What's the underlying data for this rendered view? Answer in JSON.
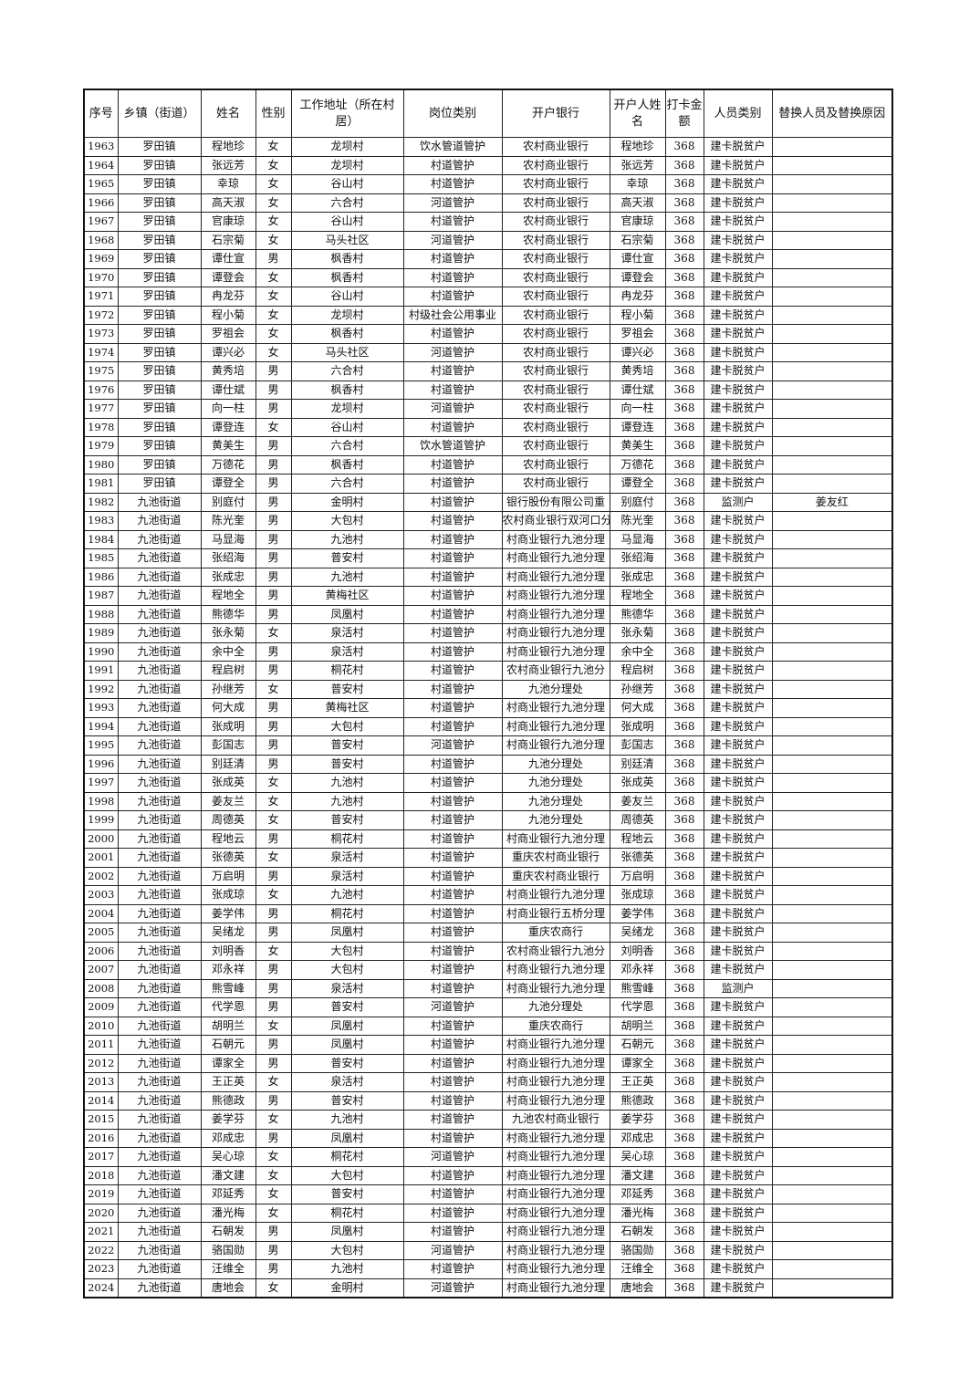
{
  "headers": [
    "序号",
    "乡镇（街道）",
    "姓名",
    "性别",
    "工作地址（所在村居）",
    "岗位类别",
    "开户银行",
    "开户人姓名",
    "打卡金额",
    "人员类别",
    "替换人员及替换原因"
  ],
  "rows": [
    [
      "1963",
      "罗田镇",
      "程地珍",
      "女",
      "龙坝村",
      "饮水管道管护",
      "农村商业银行",
      "程地珍",
      "368",
      "建卡脱贫户",
      ""
    ],
    [
      "1964",
      "罗田镇",
      "张远芳",
      "女",
      "龙坝村",
      "村道管护",
      "农村商业银行",
      "张远芳",
      "368",
      "建卡脱贫户",
      ""
    ],
    [
      "1965",
      "罗田镇",
      "幸琼",
      "女",
      "谷山村",
      "村道管护",
      "农村商业银行",
      "幸琼",
      "368",
      "建卡脱贫户",
      ""
    ],
    [
      "1966",
      "罗田镇",
      "高天淑",
      "女",
      "六合村",
      "河道管护",
      "农村商业银行",
      "高天淑",
      "368",
      "建卡脱贫户",
      ""
    ],
    [
      "1967",
      "罗田镇",
      "官康琼",
      "女",
      "谷山村",
      "村道管护",
      "农村商业银行",
      "官康琼",
      "368",
      "建卡脱贫户",
      ""
    ],
    [
      "1968",
      "罗田镇",
      "石宗菊",
      "女",
      "马头社区",
      "河道管护",
      "农村商业银行",
      "石宗菊",
      "368",
      "建卡脱贫户",
      ""
    ],
    [
      "1969",
      "罗田镇",
      "谭仕宣",
      "男",
      "枫香村",
      "村道管护",
      "农村商业银行",
      "谭仕宣",
      "368",
      "建卡脱贫户",
      ""
    ],
    [
      "1970",
      "罗田镇",
      "谭登会",
      "女",
      "枫香村",
      "村道管护",
      "农村商业银行",
      "谭登会",
      "368",
      "建卡脱贫户",
      ""
    ],
    [
      "1971",
      "罗田镇",
      "冉龙芬",
      "女",
      "谷山村",
      "村道管护",
      "农村商业银行",
      "冉龙芬",
      "368",
      "建卡脱贫户",
      ""
    ],
    [
      "1972",
      "罗田镇",
      "程小菊",
      "女",
      "龙坝村",
      "村级社会公用事业",
      "农村商业银行",
      "程小菊",
      "368",
      "建卡脱贫户",
      ""
    ],
    [
      "1973",
      "罗田镇",
      "罗祖会",
      "女",
      "枫香村",
      "村道管护",
      "农村商业银行",
      "罗祖会",
      "368",
      "建卡脱贫户",
      ""
    ],
    [
      "1974",
      "罗田镇",
      "谭兴必",
      "女",
      "马头社区",
      "河道管护",
      "农村商业银行",
      "谭兴必",
      "368",
      "建卡脱贫户",
      ""
    ],
    [
      "1975",
      "罗田镇",
      "黄秀培",
      "男",
      "六合村",
      "村道管护",
      "农村商业银行",
      "黄秀培",
      "368",
      "建卡脱贫户",
      ""
    ],
    [
      "1976",
      "罗田镇",
      "谭仕斌",
      "男",
      "枫香村",
      "村道管护",
      "农村商业银行",
      "谭仕斌",
      "368",
      "建卡脱贫户",
      ""
    ],
    [
      "1977",
      "罗田镇",
      "向一柱",
      "男",
      "龙坝村",
      "河道管护",
      "农村商业银行",
      "向一柱",
      "368",
      "建卡脱贫户",
      ""
    ],
    [
      "1978",
      "罗田镇",
      "谭登连",
      "女",
      "谷山村",
      "村道管护",
      "农村商业银行",
      "谭登连",
      "368",
      "建卡脱贫户",
      ""
    ],
    [
      "1979",
      "罗田镇",
      "黄美生",
      "男",
      "六合村",
      "饮水管道管护",
      "农村商业银行",
      "黄美生",
      "368",
      "建卡脱贫户",
      ""
    ],
    [
      "1980",
      "罗田镇",
      "万德花",
      "男",
      "枫香村",
      "村道管护",
      "农村商业银行",
      "万德花",
      "368",
      "建卡脱贫户",
      ""
    ],
    [
      "1981",
      "罗田镇",
      "谭登全",
      "男",
      "六合村",
      "村道管护",
      "农村商业银行",
      "谭登全",
      "368",
      "建卡脱贫户",
      ""
    ],
    [
      "1982",
      "九池街道",
      "别庭付",
      "男",
      "金明村",
      "村道管护",
      "银行股份有限公司重",
      "别庭付",
      "368",
      "监测户",
      "姜友红"
    ],
    [
      "1983",
      "九池街道",
      "陈光奎",
      "男",
      "大包村",
      "村道管护",
      "农村商业银行双河口分",
      "陈光奎",
      "368",
      "建卡脱贫户",
      ""
    ],
    [
      "1984",
      "九池街道",
      "马显海",
      "男",
      "九池村",
      "村道管护",
      "村商业银行九池分理",
      "马显海",
      "368",
      "建卡脱贫户",
      ""
    ],
    [
      "1985",
      "九池街道",
      "张绍海",
      "男",
      "普安村",
      "村道管护",
      "村商业银行九池分理",
      "张绍海",
      "368",
      "建卡脱贫户",
      ""
    ],
    [
      "1986",
      "九池街道",
      "张成忠",
      "男",
      "九池村",
      "村道管护",
      "村商业银行九池分理",
      "张成忠",
      "368",
      "建卡脱贫户",
      ""
    ],
    [
      "1987",
      "九池街道",
      "程地全",
      "男",
      "黄梅社区",
      "村道管护",
      "村商业银行九池分理",
      "程地全",
      "368",
      "建卡脱贫户",
      ""
    ],
    [
      "1988",
      "九池街道",
      "熊德华",
      "男",
      "凤凰村",
      "村道管护",
      "村商业银行九池分理",
      "熊德华",
      "368",
      "建卡脱贫户",
      ""
    ],
    [
      "1989",
      "九池街道",
      "张永菊",
      "女",
      "泉活村",
      "村道管护",
      "村商业银行九池分理",
      "张永菊",
      "368",
      "建卡脱贫户",
      ""
    ],
    [
      "1990",
      "九池街道",
      "余中全",
      "男",
      "泉活村",
      "村道管护",
      "村商业银行九池分理",
      "余中全",
      "368",
      "建卡脱贫户",
      ""
    ],
    [
      "1991",
      "九池街道",
      "程启树",
      "男",
      "桐花村",
      "村道管护",
      "农村商业银行九池分",
      "程启树",
      "368",
      "建卡脱贫户",
      ""
    ],
    [
      "1992",
      "九池街道",
      "孙继芳",
      "女",
      "普安村",
      "村道管护",
      "九池分理处",
      "孙继芳",
      "368",
      "建卡脱贫户",
      ""
    ],
    [
      "1993",
      "九池街道",
      "何大成",
      "男",
      "黄梅社区",
      "村道管护",
      "村商业银行九池分理",
      "何大成",
      "368",
      "建卡脱贫户",
      ""
    ],
    [
      "1994",
      "九池街道",
      "张成明",
      "男",
      "大包村",
      "村道管护",
      "村商业银行九池分理",
      "张成明",
      "368",
      "建卡脱贫户",
      ""
    ],
    [
      "1995",
      "九池街道",
      "彭国志",
      "男",
      "普安村",
      "河道管护",
      "村商业银行九池分理",
      "彭国志",
      "368",
      "建卡脱贫户",
      ""
    ],
    [
      "1996",
      "九池街道",
      "别廷清",
      "男",
      "普安村",
      "村道管护",
      "九池分理处",
      "别廷清",
      "368",
      "建卡脱贫户",
      ""
    ],
    [
      "1997",
      "九池街道",
      "张成英",
      "女",
      "九池村",
      "村道管护",
      "九池分理处",
      "张成英",
      "368",
      "建卡脱贫户",
      ""
    ],
    [
      "1998",
      "九池街道",
      "姜友兰",
      "女",
      "九池村",
      "村道管护",
      "九池分理处",
      "姜友兰",
      "368",
      "建卡脱贫户",
      ""
    ],
    [
      "1999",
      "九池街道",
      "周德英",
      "女",
      "普安村",
      "村道管护",
      "九池分理处",
      "周德英",
      "368",
      "建卡脱贫户",
      ""
    ],
    [
      "2000",
      "九池街道",
      "程地云",
      "男",
      "桐花村",
      "村道管护",
      "村商业银行九池分理",
      "程地云",
      "368",
      "建卡脱贫户",
      ""
    ],
    [
      "2001",
      "九池街道",
      "张德英",
      "女",
      "泉活村",
      "村道管护",
      "重庆农村商业银行",
      "张德英",
      "368",
      "建卡脱贫户",
      ""
    ],
    [
      "2002",
      "九池街道",
      "万启明",
      "男",
      "泉活村",
      "村道管护",
      "重庆农村商业银行",
      "万启明",
      "368",
      "建卡脱贫户",
      ""
    ],
    [
      "2003",
      "九池街道",
      "张成琼",
      "女",
      "九池村",
      "村道管护",
      "村商业银行九池分理",
      "张成琼",
      "368",
      "建卡脱贫户",
      ""
    ],
    [
      "2004",
      "九池街道",
      "姜学伟",
      "男",
      "桐花村",
      "村道管护",
      "村商业银行五桥分理",
      "姜学伟",
      "368",
      "建卡脱贫户",
      ""
    ],
    [
      "2005",
      "九池街道",
      "吴绪龙",
      "男",
      "凤凰村",
      "村道管护",
      "重庆农商行",
      "吴绪龙",
      "368",
      "建卡脱贫户",
      ""
    ],
    [
      "2006",
      "九池街道",
      "刘明香",
      "女",
      "大包村",
      "村道管护",
      "农村商业银行九池分",
      "刘明香",
      "368",
      "建卡脱贫户",
      ""
    ],
    [
      "2007",
      "九池街道",
      "邓永祥",
      "男",
      "大包村",
      "村道管护",
      "村商业银行九池分理",
      "邓永祥",
      "368",
      "建卡脱贫户",
      ""
    ],
    [
      "2008",
      "九池街道",
      "熊雪峰",
      "男",
      "泉活村",
      "村道管护",
      "村商业银行九池分理",
      "熊雪峰",
      "368",
      "监测户",
      ""
    ],
    [
      "2009",
      "九池街道",
      "代学恩",
      "男",
      "普安村",
      "河道管护",
      "九池分理处",
      "代学恩",
      "368",
      "建卡脱贫户",
      ""
    ],
    [
      "2010",
      "九池街道",
      "胡明兰",
      "女",
      "凤凰村",
      "村道管护",
      "重庆农商行",
      "胡明兰",
      "368",
      "建卡脱贫户",
      ""
    ],
    [
      "2011",
      "九池街道",
      "石朝元",
      "男",
      "凤凰村",
      "村道管护",
      "村商业银行九池分理",
      "石朝元",
      "368",
      "建卡脱贫户",
      ""
    ],
    [
      "2012",
      "九池街道",
      "谭家全",
      "男",
      "普安村",
      "村道管护",
      "村商业银行九池分理",
      "谭家全",
      "368",
      "建卡脱贫户",
      ""
    ],
    [
      "2013",
      "九池街道",
      "王正英",
      "女",
      "泉活村",
      "村道管护",
      "村商业银行九池分理",
      "王正英",
      "368",
      "建卡脱贫户",
      ""
    ],
    [
      "2014",
      "九池街道",
      "熊德政",
      "男",
      "普安村",
      "村道管护",
      "村商业银行九池分理",
      "熊德政",
      "368",
      "建卡脱贫户",
      ""
    ],
    [
      "2015",
      "九池街道",
      "姜学芬",
      "女",
      "九池村",
      "村道管护",
      "九池农村商业银行",
      "姜学芬",
      "368",
      "建卡脱贫户",
      ""
    ],
    [
      "2016",
      "九池街道",
      "邓成忠",
      "男",
      "凤凰村",
      "村道管护",
      "村商业银行九池分理",
      "邓成忠",
      "368",
      "建卡脱贫户",
      ""
    ],
    [
      "2017",
      "九池街道",
      "吴心琼",
      "女",
      "桐花村",
      "河道管护",
      "村商业银行九池分理",
      "吴心琼",
      "368",
      "建卡脱贫户",
      ""
    ],
    [
      "2018",
      "九池街道",
      "潘文建",
      "女",
      "大包村",
      "村道管护",
      "村商业银行九池分理",
      "潘文建",
      "368",
      "建卡脱贫户",
      ""
    ],
    [
      "2019",
      "九池街道",
      "邓延秀",
      "女",
      "普安村",
      "村道管护",
      "村商业银行九池分理",
      "邓延秀",
      "368",
      "建卡脱贫户",
      ""
    ],
    [
      "2020",
      "九池街道",
      "潘光梅",
      "女",
      "桐花村",
      "村道管护",
      "村商业银行九池分理",
      "潘光梅",
      "368",
      "建卡脱贫户",
      ""
    ],
    [
      "2021",
      "九池街道",
      "石朝发",
      "男",
      "凤凰村",
      "村道管护",
      "村商业银行九池分理",
      "石朝发",
      "368",
      "建卡脱贫户",
      ""
    ],
    [
      "2022",
      "九池街道",
      "骆国勋",
      "男",
      "大包村",
      "河道管护",
      "村商业银行九池分理",
      "骆国勋",
      "368",
      "建卡脱贫户",
      ""
    ],
    [
      "2023",
      "九池街道",
      "汪维全",
      "男",
      "九池村",
      "村道管护",
      "村商业银行九池分理",
      "汪维全",
      "368",
      "建卡脱贫户",
      ""
    ],
    [
      "2024",
      "九池街道",
      "唐地会",
      "女",
      "金明村",
      "河道管护",
      "村商业银行九池分理",
      "唐地会",
      "368",
      "建卡脱贫户",
      ""
    ]
  ]
}
